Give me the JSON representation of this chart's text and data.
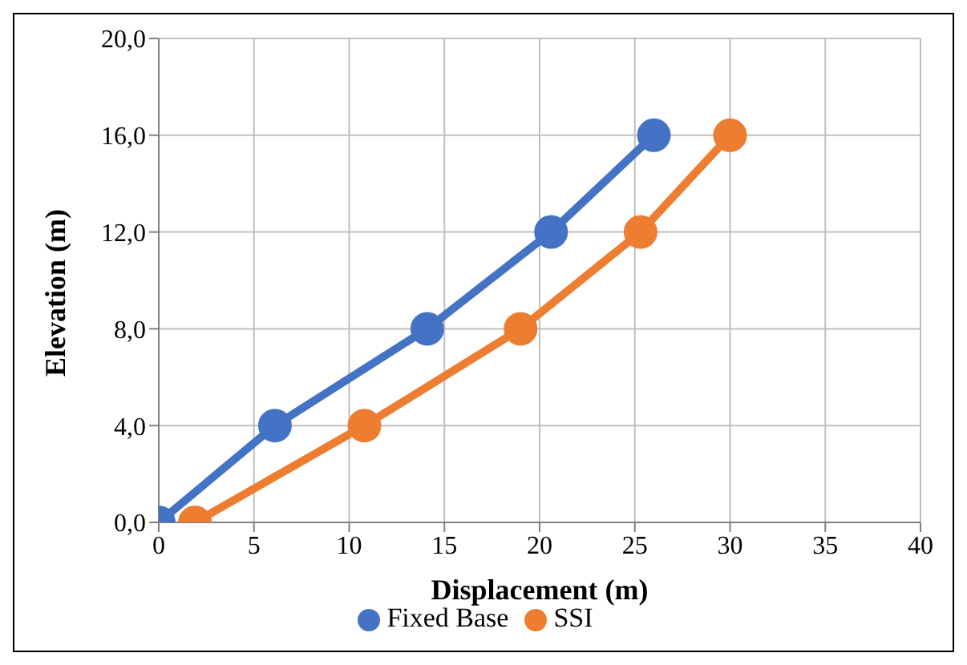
{
  "chart_data": {
    "type": "line",
    "xlabel": "Displacement (m)",
    "ylabel": "Elevation (m)",
    "series": [
      {
        "name": "Fixed Base",
        "color": "#4472c4",
        "x": [
          0,
          6.1,
          14.1,
          20.6,
          26.0
        ],
        "values": [
          0,
          4,
          8,
          12,
          16
        ]
      },
      {
        "name": "SSI",
        "color": "#ed7d31",
        "x": [
          1.9,
          10.8,
          19.0,
          25.3,
          30.0
        ],
        "values": [
          0,
          4,
          8,
          12,
          16
        ]
      }
    ],
    "xlim": [
      0,
      40
    ],
    "xticks": [
      0,
      5,
      10,
      15,
      20,
      25,
      30,
      35,
      40
    ],
    "ylim": [
      0,
      20
    ],
    "yticks": [
      {
        "value": 0,
        "label": "0,0"
      },
      {
        "value": 4,
        "label": "4,0"
      },
      {
        "value": 8,
        "label": "8,0"
      },
      {
        "value": 12,
        "label": "12,0"
      },
      {
        "value": 16,
        "label": "16,0"
      },
      {
        "value": 20,
        "label": "20,0"
      }
    ],
    "grid": true,
    "legend": "bottom",
    "marker": "circle",
    "line_style": "solid"
  }
}
